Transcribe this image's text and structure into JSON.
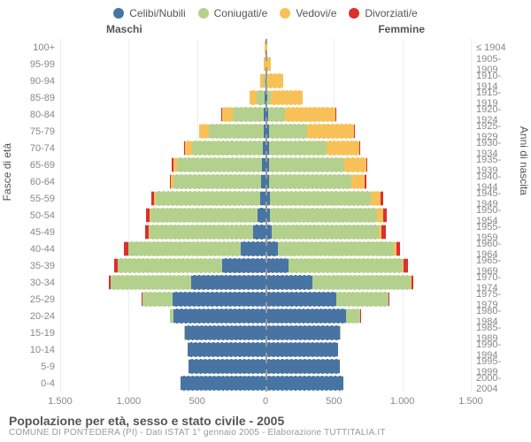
{
  "legend": [
    {
      "label": "Celibi/Nubili",
      "color": "#4874a4"
    },
    {
      "label": "Coniugati/e",
      "color": "#b3d18c"
    },
    {
      "label": "Vedovi/e",
      "color": "#f8c158"
    },
    {
      "label": "Divorziati/e",
      "color": "#d93030"
    }
  ],
  "headers": {
    "male": "Maschi",
    "female": "Femmine"
  },
  "axis_titles": {
    "left": "Fasce di età",
    "right": "Anni di nascita"
  },
  "title": "Popolazione per età, sesso e stato civile - 2005",
  "subtitle": "COMUNE DI PONTEDERA (PI) - Dati ISTAT 1° gennaio 2005 - Elaborazione TUTTITALIA.IT",
  "xaxis": {
    "max": 1500,
    "ticks": [
      1500,
      1000,
      500,
      0,
      500,
      1000,
      1500
    ],
    "labels": [
      "1.500",
      "1.000",
      "500",
      "0",
      "500",
      "1.000",
      "1.500"
    ]
  },
  "colors": {
    "celibi": "#4874a4",
    "coniugati": "#b3d18c",
    "vedovi": "#f8c158",
    "divorziati": "#d93030",
    "bg": "#ffffff",
    "grid": "#eeeeee",
    "text": "#888888"
  },
  "rows": [
    {
      "age": "100+",
      "birth": "≤ 1904",
      "m": {
        "cel": 0,
        "con": 0,
        "ved": 5,
        "div": 0
      },
      "f": {
        "cel": 0,
        "con": 0,
        "ved": 10,
        "div": 0
      }
    },
    {
      "age": "95-99",
      "birth": "1905-1909",
      "m": {
        "cel": 0,
        "con": 0,
        "ved": 10,
        "div": 0
      },
      "f": {
        "cel": 2,
        "con": 0,
        "ved": 35,
        "div": 0
      }
    },
    {
      "age": "90-94",
      "birth": "1910-1914",
      "m": {
        "cel": 2,
        "con": 10,
        "ved": 30,
        "div": 0
      },
      "f": {
        "cel": 5,
        "con": 5,
        "ved": 120,
        "div": 0
      }
    },
    {
      "age": "85-89",
      "birth": "1915-1919",
      "m": {
        "cel": 5,
        "con": 60,
        "ved": 50,
        "div": 0
      },
      "f": {
        "cel": 10,
        "con": 30,
        "ved": 230,
        "div": 0
      }
    },
    {
      "age": "80-84",
      "birth": "1920-1924",
      "m": {
        "cel": 10,
        "con": 230,
        "ved": 80,
        "div": 2
      },
      "f": {
        "cel": 20,
        "con": 120,
        "ved": 370,
        "div": 3
      }
    },
    {
      "age": "75-79",
      "birth": "1925-1929",
      "m": {
        "cel": 15,
        "con": 400,
        "ved": 70,
        "div": 3
      },
      "f": {
        "cel": 25,
        "con": 280,
        "ved": 340,
        "div": 5
      }
    },
    {
      "age": "70-74",
      "birth": "1930-1934",
      "m": {
        "cel": 20,
        "con": 520,
        "ved": 50,
        "div": 5
      },
      "f": {
        "cel": 25,
        "con": 420,
        "ved": 240,
        "div": 8
      }
    },
    {
      "age": "65-69",
      "birth": "1935-1939",
      "m": {
        "cel": 25,
        "con": 620,
        "ved": 30,
        "div": 8
      },
      "f": {
        "cel": 25,
        "con": 550,
        "ved": 160,
        "div": 10
      }
    },
    {
      "age": "60-64",
      "birth": "1940-1944",
      "m": {
        "cel": 30,
        "con": 640,
        "ved": 20,
        "div": 10
      },
      "f": {
        "cel": 25,
        "con": 600,
        "ved": 100,
        "div": 12
      }
    },
    {
      "age": "55-59",
      "birth": "1945-1949",
      "m": {
        "cel": 40,
        "con": 760,
        "ved": 15,
        "div": 20
      },
      "f": {
        "cel": 30,
        "con": 740,
        "ved": 70,
        "div": 20
      }
    },
    {
      "age": "50-54",
      "birth": "1950-1954",
      "m": {
        "cel": 60,
        "con": 780,
        "ved": 10,
        "div": 22
      },
      "f": {
        "cel": 35,
        "con": 780,
        "ved": 45,
        "div": 25
      }
    },
    {
      "age": "45-49",
      "birth": "1955-1959",
      "m": {
        "cel": 90,
        "con": 760,
        "ved": 5,
        "div": 25
      },
      "f": {
        "cel": 45,
        "con": 780,
        "ved": 25,
        "div": 28
      }
    },
    {
      "age": "40-44",
      "birth": "1960-1964",
      "m": {
        "cel": 180,
        "con": 820,
        "ved": 3,
        "div": 30
      },
      "f": {
        "cel": 90,
        "con": 850,
        "ved": 15,
        "div": 30
      }
    },
    {
      "age": "35-39",
      "birth": "1965-1969",
      "m": {
        "cel": 320,
        "con": 760,
        "ved": 2,
        "div": 25
      },
      "f": {
        "cel": 170,
        "con": 830,
        "ved": 10,
        "div": 28
      }
    },
    {
      "age": "30-34",
      "birth": "1970-1974",
      "m": {
        "cel": 540,
        "con": 590,
        "ved": 1,
        "div": 15
      },
      "f": {
        "cel": 340,
        "con": 720,
        "ved": 5,
        "div": 18
      }
    },
    {
      "age": "25-29",
      "birth": "1975-1979",
      "m": {
        "cel": 680,
        "con": 220,
        "ved": 0,
        "div": 5
      },
      "f": {
        "cel": 520,
        "con": 380,
        "ved": 2,
        "div": 6
      }
    },
    {
      "age": "20-24",
      "birth": "1980-1984",
      "m": {
        "cel": 670,
        "con": 30,
        "ved": 0,
        "div": 1
      },
      "f": {
        "cel": 590,
        "con": 100,
        "ved": 0,
        "div": 2
      }
    },
    {
      "age": "15-19",
      "birth": "1985-1989",
      "m": {
        "cel": 590,
        "con": 2,
        "ved": 0,
        "div": 0
      },
      "f": {
        "cel": 540,
        "con": 10,
        "ved": 0,
        "div": 0
      }
    },
    {
      "age": "10-14",
      "birth": "1990-1994",
      "m": {
        "cel": 570,
        "con": 0,
        "ved": 0,
        "div": 0
      },
      "f": {
        "cel": 530,
        "con": 0,
        "ved": 0,
        "div": 0
      }
    },
    {
      "age": "5-9",
      "birth": "1995-1999",
      "m": {
        "cel": 560,
        "con": 0,
        "ved": 0,
        "div": 0
      },
      "f": {
        "cel": 540,
        "con": 0,
        "ved": 0,
        "div": 0
      }
    },
    {
      "age": "0-4",
      "birth": "2000-2004",
      "m": {
        "cel": 620,
        "con": 0,
        "ved": 0,
        "div": 0
      },
      "f": {
        "cel": 570,
        "con": 0,
        "ved": 0,
        "div": 0
      }
    }
  ]
}
